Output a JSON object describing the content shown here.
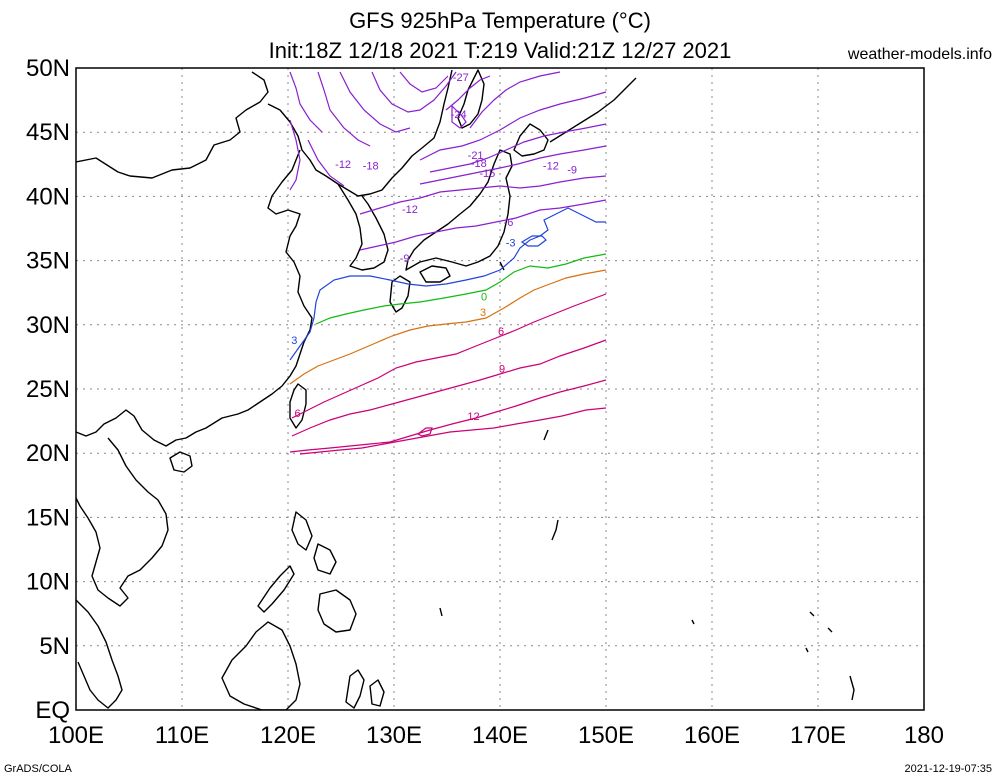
{
  "title": {
    "line1": "GFS 925hPa Temperature (°C)",
    "line2": "Init:18Z 12/18 2021 T:219 Valid:21Z 12/27 2021"
  },
  "brand": "weather-models.info",
  "footer": {
    "left": "GrADS/COLA",
    "right": "2021-12-19-07:35"
  },
  "map": {
    "lon_range": [
      100,
      180
    ],
    "lat_range": [
      0,
      50
    ],
    "grid": true,
    "lat_ticks": [
      {
        "lat": 50,
        "label": "50N"
      },
      {
        "lat": 45,
        "label": "45N"
      },
      {
        "lat": 40,
        "label": "40N"
      },
      {
        "lat": 35,
        "label": "35N"
      },
      {
        "lat": 30,
        "label": "30N"
      },
      {
        "lat": 25,
        "label": "25N"
      },
      {
        "lat": 20,
        "label": "20N"
      },
      {
        "lat": 15,
        "label": "15N"
      },
      {
        "lat": 10,
        "label": "10N"
      },
      {
        "lat": 5,
        "label": "5N"
      },
      {
        "lat": 0,
        "label": "EQ"
      }
    ],
    "lon_ticks": [
      {
        "lon": 100,
        "label": "100E"
      },
      {
        "lon": 110,
        "label": "110E"
      },
      {
        "lon": 120,
        "label": "120E"
      },
      {
        "lon": 130,
        "label": "130E"
      },
      {
        "lon": 140,
        "label": "140E"
      },
      {
        "lon": 150,
        "label": "150E"
      },
      {
        "lon": 160,
        "label": "160E"
      },
      {
        "lon": 170,
        "label": "170E"
      },
      {
        "lon": 180,
        "label": "180"
      }
    ],
    "contour_labels": [
      {
        "text": "-27",
        "lon": 136.3,
        "lat": 49.0,
        "color": "#8a1fd0"
      },
      {
        "text": "-24",
        "lon": 136.1,
        "lat": 46.1,
        "color": "#8a1fd0"
      },
      {
        "text": "-21",
        "lon": 137.7,
        "lat": 42.9,
        "color": "#8a1fd0"
      },
      {
        "text": "-18",
        "lon": 138.0,
        "lat": 42.3,
        "color": "#8a1fd0"
      },
      {
        "text": "-15",
        "lon": 138.8,
        "lat": 41.5,
        "color": "#8a1fd0"
      },
      {
        "text": "-12",
        "lon": 125.2,
        "lat": 42.2,
        "color": "#8a1fd0"
      },
      {
        "text": "-18",
        "lon": 127.8,
        "lat": 42.1,
        "color": "#8a1fd0"
      },
      {
        "text": "-12",
        "lon": 131.5,
        "lat": 38.7,
        "color": "#8a1fd0"
      },
      {
        "text": "-12",
        "lon": 144.8,
        "lat": 42.1,
        "color": "#8a1fd0"
      },
      {
        "text": "-9",
        "lon": 146.8,
        "lat": 41.8,
        "color": "#8a1fd0"
      },
      {
        "text": "-9",
        "lon": 131.0,
        "lat": 34.9,
        "color": "#8a1fd0"
      },
      {
        "text": "-6",
        "lon": 140.8,
        "lat": 37.7,
        "color": "#8a1fd0"
      },
      {
        "text": "-3",
        "lon": 141.0,
        "lat": 36.1,
        "color": "#2244dd"
      },
      {
        "text": "0",
        "lon": 138.5,
        "lat": 31.9,
        "color": "#11bb11"
      },
      {
        "text": "3",
        "lon": 138.4,
        "lat": 30.7,
        "color": "#d87010"
      },
      {
        "text": "3",
        "lon": 120.6,
        "lat": 28.5,
        "color": "#2244dd"
      },
      {
        "text": "6",
        "lon": 140.1,
        "lat": 29.2,
        "color": "#cc0077"
      },
      {
        "text": "9",
        "lon": 140.2,
        "lat": 26.3,
        "color": "#cc0077"
      },
      {
        "text": "12",
        "lon": 137.5,
        "lat": 22.6,
        "color": "#cc0077"
      },
      {
        "text": "6",
        "lon": 120.9,
        "lat": 22.8,
        "color": "#cc0077"
      }
    ]
  }
}
